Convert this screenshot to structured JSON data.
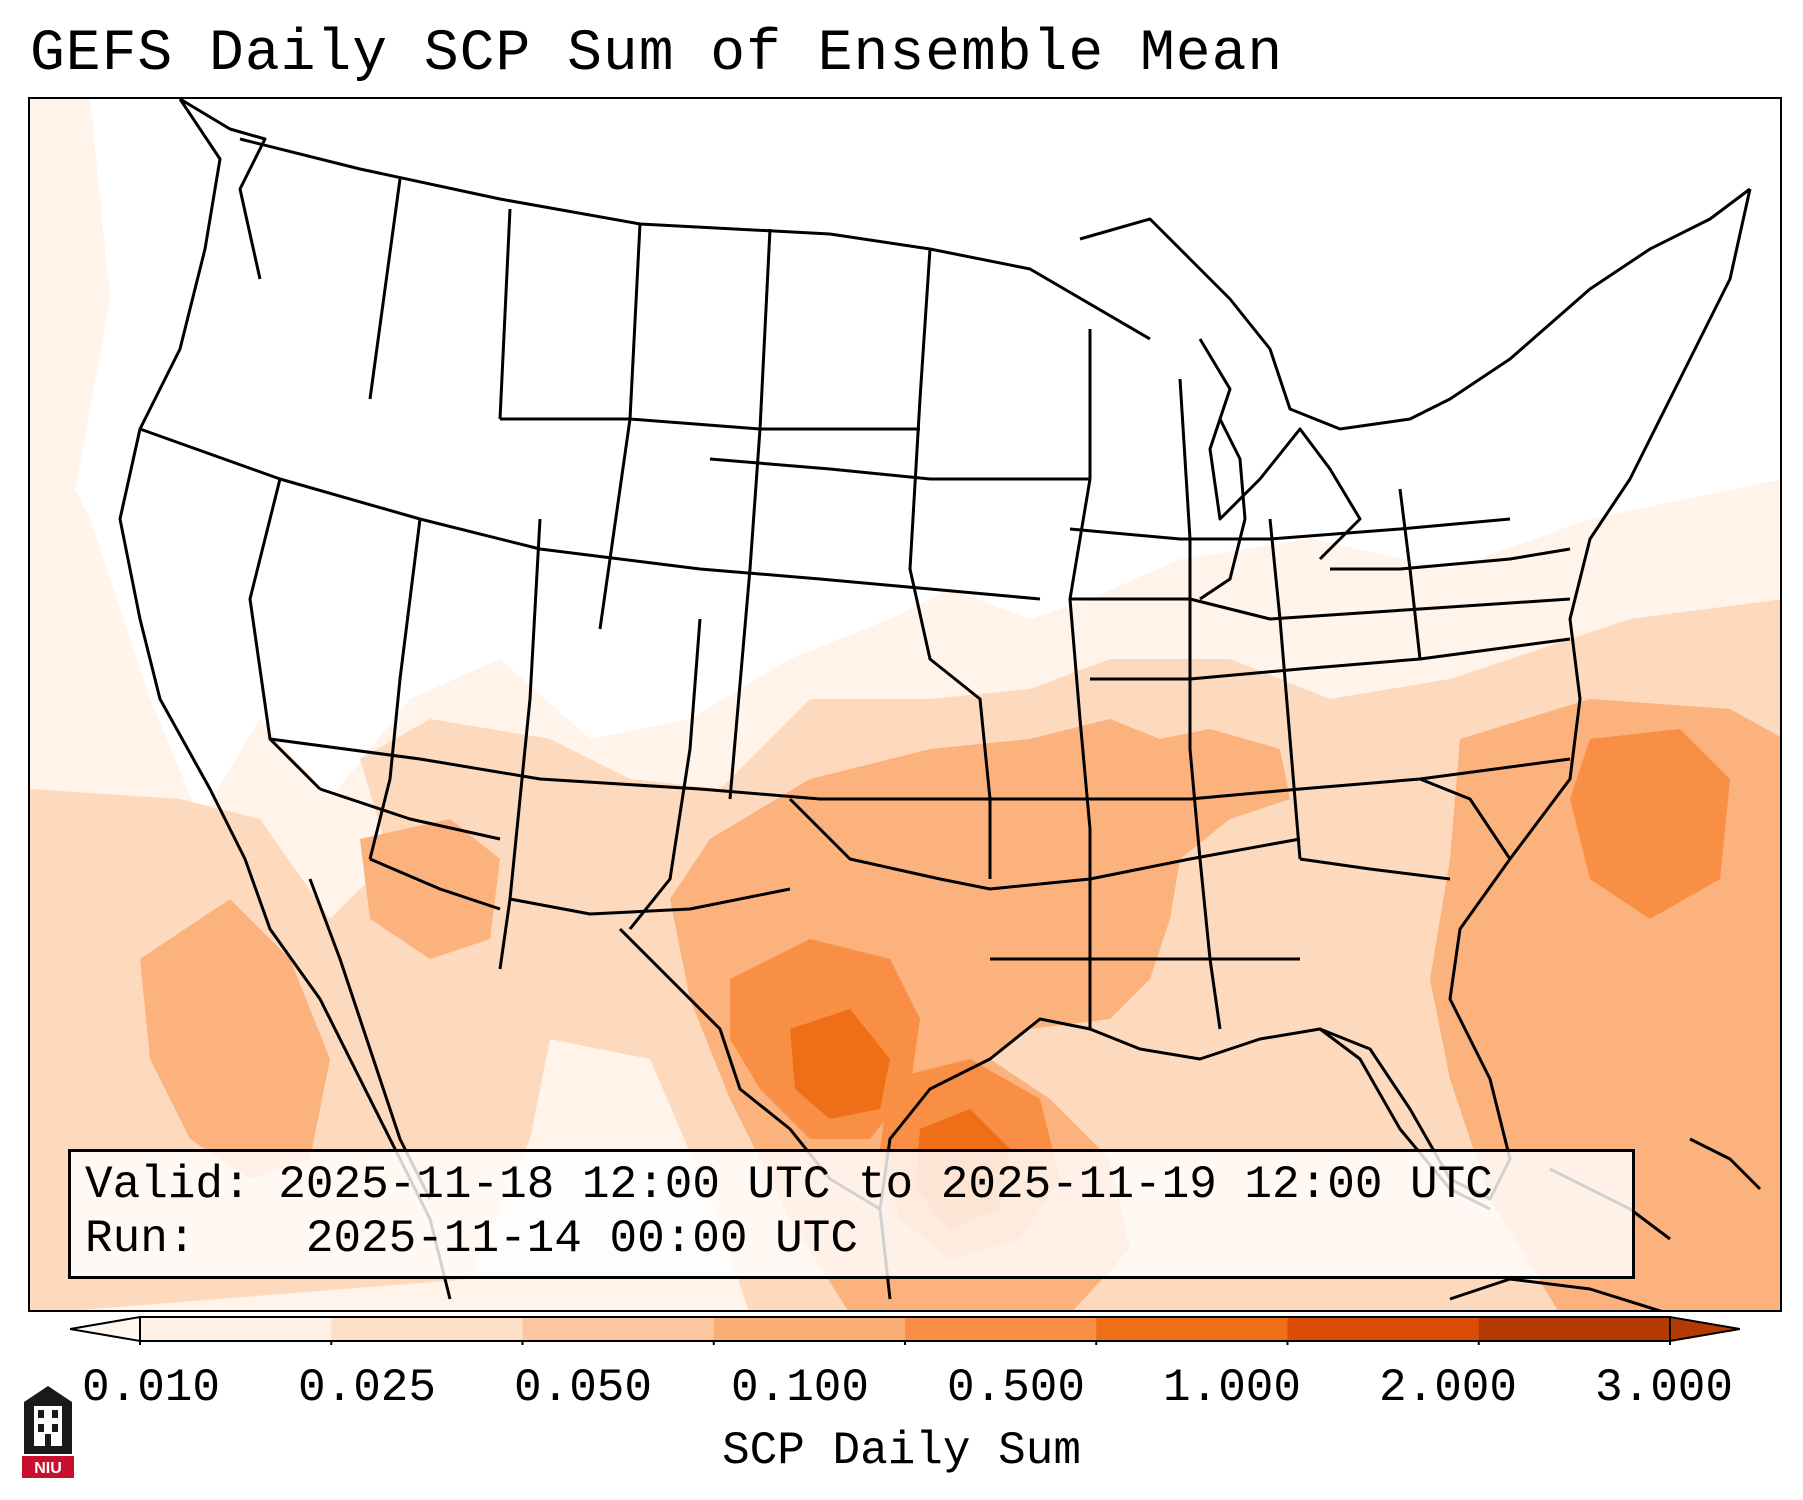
{
  "title": "GEFS Daily SCP Sum of Ensemble Mean",
  "info": {
    "valid_label": "Valid:",
    "valid_value": "2025-11-18 12:00 UTC to 2025-11-19 12:00 UTC",
    "run_label": "Run:",
    "run_value": "2025-11-14 00:00 UTC"
  },
  "colorbar": {
    "label": "SCP Daily Sum",
    "ticks": [
      "0.010",
      "0.025",
      "0.050",
      "0.100",
      "0.500",
      "1.000",
      "2.000",
      "3.000"
    ],
    "colors": [
      "#fff1e6",
      "#fde0c8",
      "#fcc79e",
      "#fbae74",
      "#f98f44",
      "#ee6f17",
      "#d94d06",
      "#b33a02"
    ]
  },
  "logo": {
    "text": "NIU"
  }
}
